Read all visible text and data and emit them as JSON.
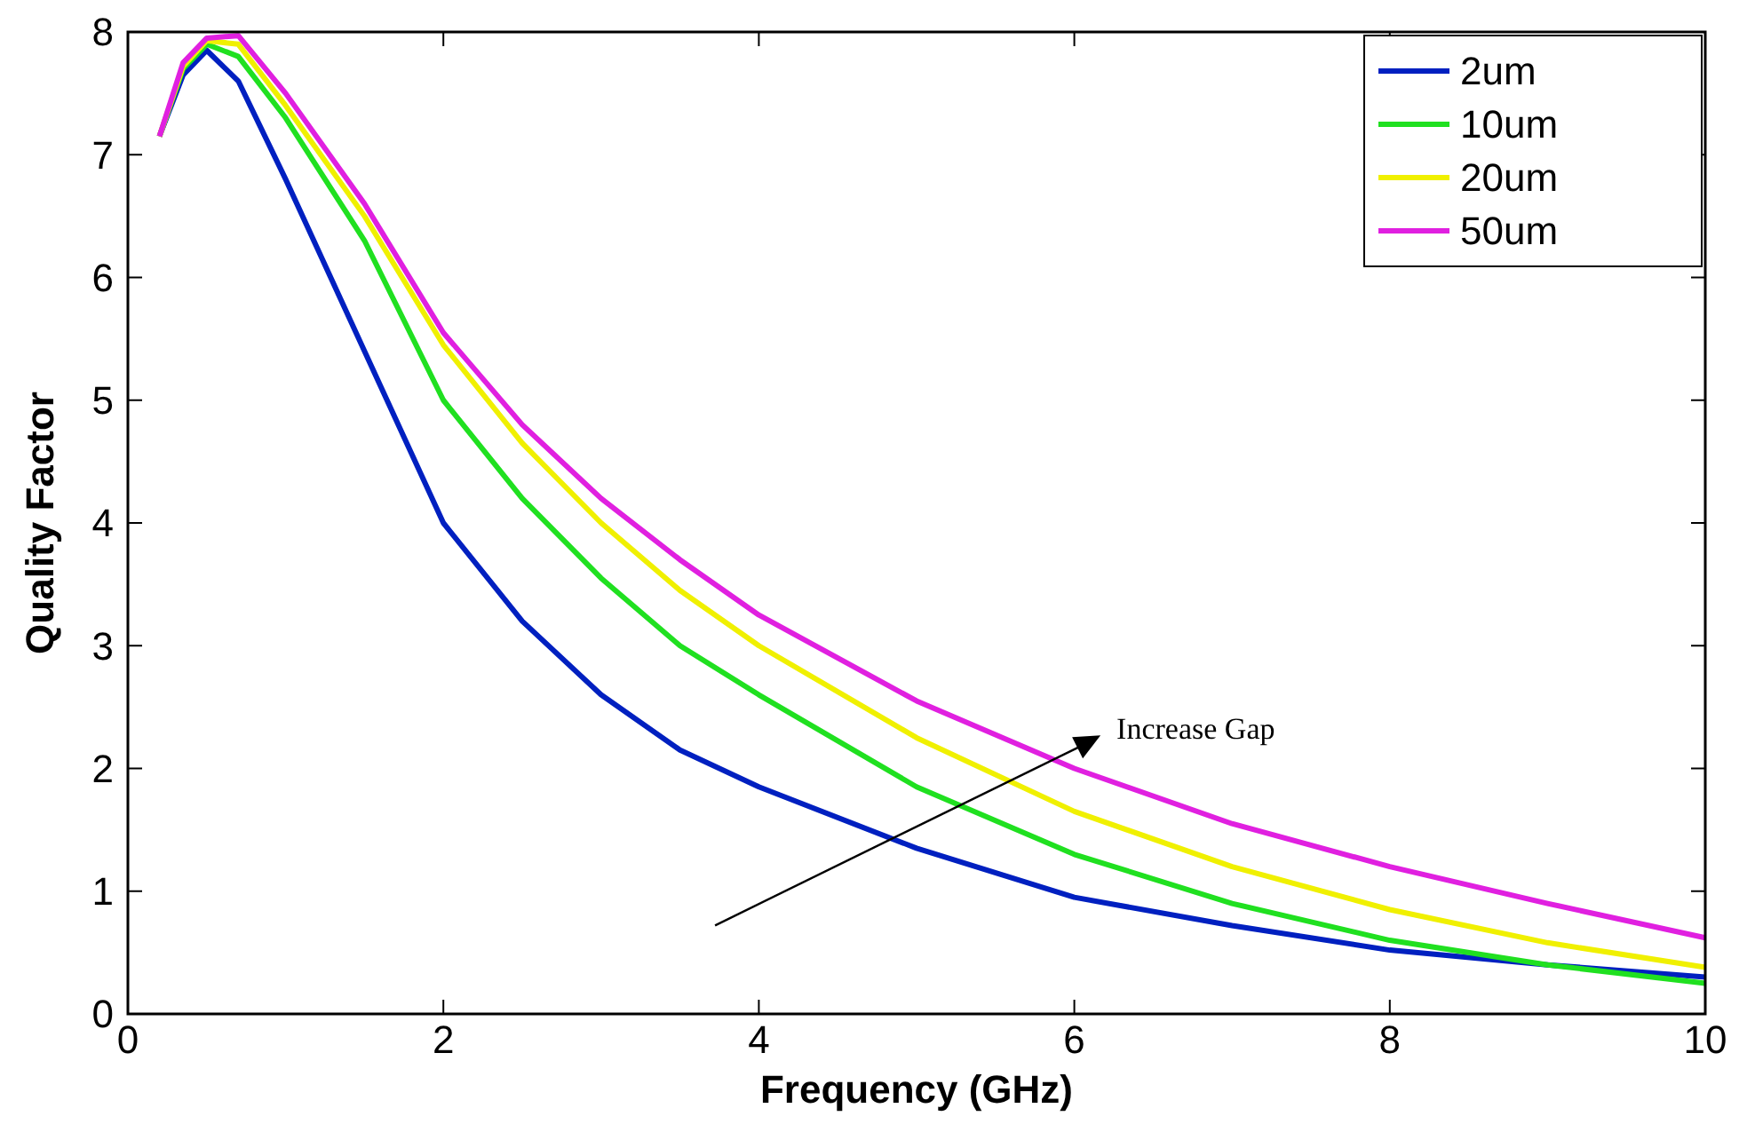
{
  "chart_data": {
    "type": "line",
    "xlabel": "Frequency (GHz)",
    "ylabel": "Quality Factor",
    "xlim": [
      0,
      10
    ],
    "ylim": [
      0,
      8
    ],
    "xticks": [
      0,
      2,
      4,
      6,
      8,
      10
    ],
    "yticks": [
      0,
      1,
      2,
      3,
      4,
      5,
      6,
      7,
      8
    ],
    "grid": false,
    "legend": "top right",
    "marker": "none",
    "line_style": "solid",
    "x": [
      0.2,
      0.35,
      0.5,
      0.7,
      1,
      1.5,
      2,
      2.5,
      3,
      3.5,
      4,
      5,
      6,
      7,
      8,
      9,
      10
    ],
    "series": [
      {
        "name": "2um",
        "color": "#0020c0",
        "values": [
          7.15,
          7.65,
          7.85,
          7.6,
          6.8,
          5.4,
          4.0,
          3.2,
          2.6,
          2.15,
          1.85,
          1.35,
          0.95,
          0.72,
          0.52,
          0.4,
          0.3
        ]
      },
      {
        "name": "10um",
        "color": "#20e020",
        "values": [
          7.15,
          7.7,
          7.9,
          7.8,
          7.3,
          6.3,
          5.0,
          4.2,
          3.55,
          3.0,
          2.6,
          1.85,
          1.3,
          0.9,
          0.6,
          0.4,
          0.25
        ]
      },
      {
        "name": "20um",
        "color": "#f0f000",
        "values": [
          7.15,
          7.72,
          7.93,
          7.9,
          7.4,
          6.5,
          5.45,
          4.65,
          4.0,
          3.45,
          3.0,
          2.25,
          1.65,
          1.2,
          0.85,
          0.58,
          0.38
        ]
      },
      {
        "name": "50um",
        "color": "#e020e0",
        "values": [
          7.15,
          7.75,
          7.95,
          7.97,
          7.5,
          6.6,
          5.55,
          4.8,
          4.2,
          3.7,
          3.25,
          2.55,
          2.0,
          1.55,
          1.2,
          0.9,
          0.62
        ]
      }
    ],
    "annotations": [
      "Increase Gap"
    ]
  }
}
